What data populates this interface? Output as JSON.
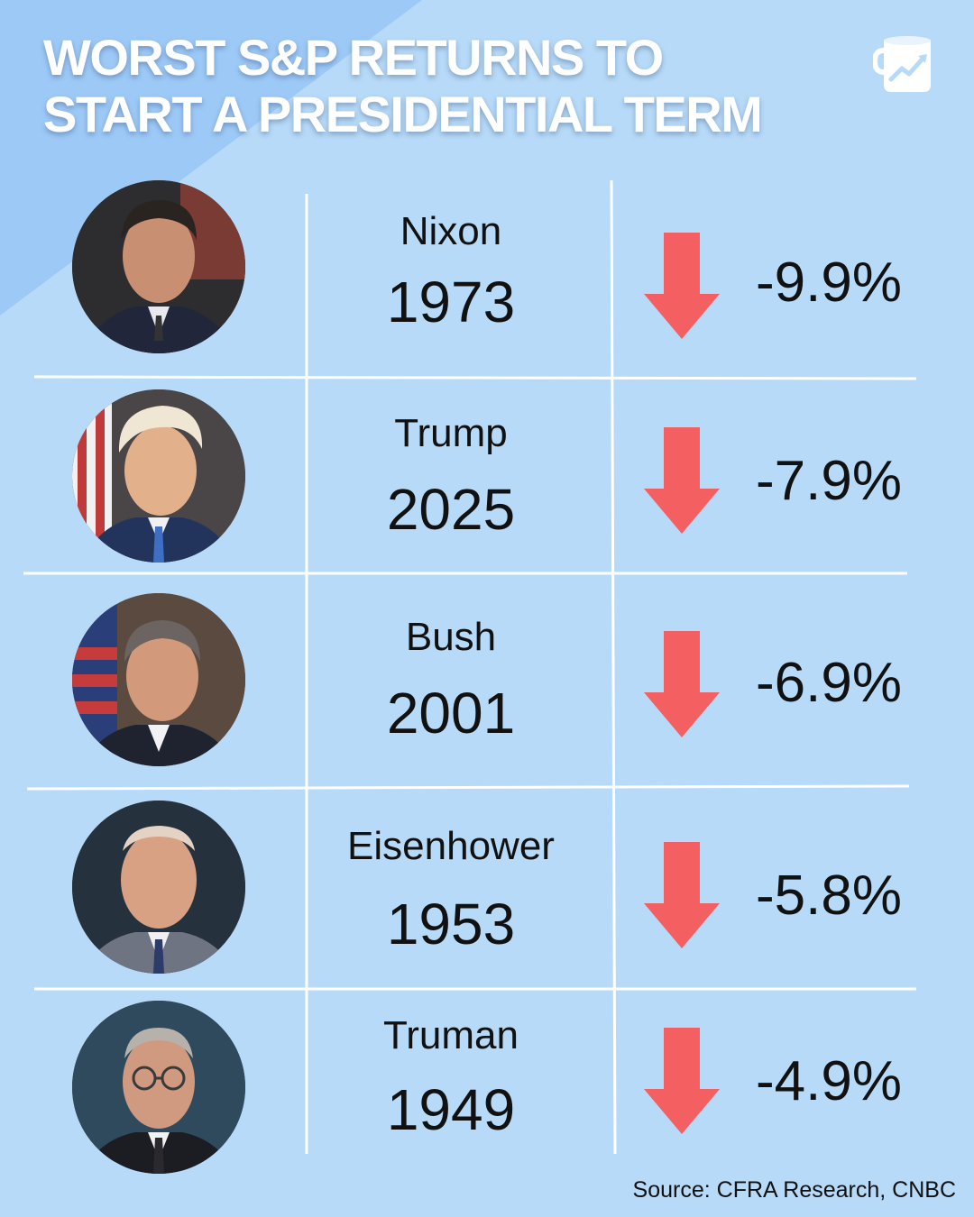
{
  "title": {
    "line1": "WORST S&P RETURNS TO",
    "line2": "START A PRESIDENTIAL TERM"
  },
  "logo": {
    "icon": "mug-chart-icon"
  },
  "colors": {
    "background": "#b7daf8",
    "accent_triangle": "#9dc9f7",
    "arrow": "#f45f62",
    "grid_line": "#ffffff",
    "text": "#111111",
    "title": "#ffffff"
  },
  "rows": [
    {
      "name": "Nixon",
      "year": "1973",
      "return": "-9.9%",
      "direction": "down"
    },
    {
      "name": "Trump",
      "year": "2025",
      "return": "-7.9%",
      "direction": "down"
    },
    {
      "name": "Bush",
      "year": "2001",
      "return": "-6.9%",
      "direction": "down"
    },
    {
      "name": "Eisenhower",
      "year": "1953",
      "return": "-5.8%",
      "direction": "down"
    },
    {
      "name": "Truman",
      "year": "1949",
      "return": "-4.9%",
      "direction": "down"
    }
  ],
  "source": "Source: CFRA Research, CNBC"
}
